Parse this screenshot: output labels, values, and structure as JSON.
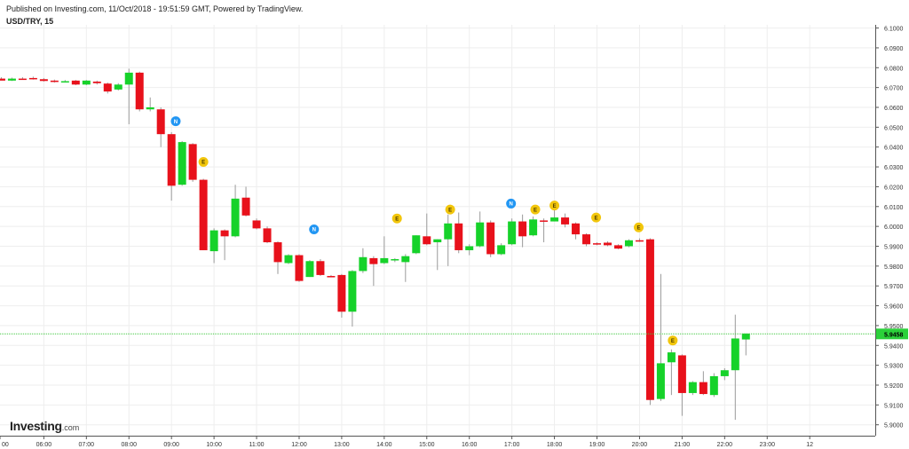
{
  "published_line": "Published on Investing.com, 11/Oct/2018 - 19:51:59 GMT, Powered by TradingView.",
  "symbol": "USD/TRY, 15",
  "logo": {
    "main": "Investing",
    "suffix": ".com"
  },
  "colors": {
    "up": "#16d22a",
    "down": "#e8111b",
    "wick": "#9a9a9a",
    "grid": "#eeeeee",
    "price_line": "#3ec83e",
    "price_tag_bg": "#2bd13a",
    "news_blue": "#2196f3",
    "event_yellow": "#f2c60c"
  },
  "chart_data": {
    "type": "candlestick",
    "y_ticks": [
      "5.9000",
      "5.9100",
      "5.9200",
      "5.9300",
      "5.9400",
      "5.9500",
      "5.9600",
      "5.9700",
      "5.9800",
      "5.9900",
      "6.0000",
      "6.0100",
      "6.0200",
      "6.0300",
      "6.0400",
      "6.0500",
      "6.0600",
      "6.0700",
      "6.0800",
      "6.0900",
      "6.1000"
    ],
    "ylim": [
      5.8945,
      6.1016
    ],
    "x_ticks": [
      {
        "t": 4.97,
        "label": "00"
      },
      {
        "t": 6.0,
        "label": "06:00"
      },
      {
        "t": 7.0,
        "label": "07:00"
      },
      {
        "t": 8.0,
        "label": "08:00"
      },
      {
        "t": 9.0,
        "label": "09:00"
      },
      {
        "t": 10.0,
        "label": "10:00"
      },
      {
        "t": 11.0,
        "label": "11:00"
      },
      {
        "t": 12.0,
        "label": "12:00"
      },
      {
        "t": 13.0,
        "label": "13:00"
      },
      {
        "t": 14.0,
        "label": "14:00"
      },
      {
        "t": 15.0,
        "label": "15:00"
      },
      {
        "t": 16.0,
        "label": "16:00"
      },
      {
        "t": 17.0,
        "label": "17:00"
      },
      {
        "t": 18.0,
        "label": "18:00"
      },
      {
        "t": 19.0,
        "label": "19:00"
      },
      {
        "t": 20.0,
        "label": "20:00"
      },
      {
        "t": 21.0,
        "label": "21:00"
      },
      {
        "t": 22.0,
        "label": "22:00"
      },
      {
        "t": 23.0,
        "label": "23:00"
      },
      {
        "t": 24.0,
        "label": "12"
      }
    ],
    "xlim": [
      4.97,
      25.54
    ],
    "last_price": "5.9458",
    "last_value": 5.9458,
    "candles": [
      {
        "t": 5.0,
        "o": 6.0745,
        "h": 6.0752,
        "l": 6.0738,
        "c": 6.0735
      },
      {
        "t": 5.25,
        "o": 6.0735,
        "h": 6.075,
        "l": 6.0733,
        "c": 6.0745
      },
      {
        "t": 5.5,
        "o": 6.0745,
        "h": 6.0752,
        "l": 6.074,
        "c": 6.0742
      },
      {
        "t": 5.75,
        "o": 6.0748,
        "h": 6.0755,
        "l": 6.074,
        "c": 6.0745
      },
      {
        "t": 6.0,
        "o": 6.0742,
        "h": 6.0748,
        "l": 6.073,
        "c": 6.0733
      },
      {
        "t": 6.25,
        "o": 6.0735,
        "h": 6.074,
        "l": 6.0725,
        "c": 6.0728
      },
      {
        "t": 6.5,
        "o": 6.073,
        "h": 6.0738,
        "l": 6.0728,
        "c": 6.0732
      },
      {
        "t": 6.75,
        "o": 6.0735,
        "h": 6.0738,
        "l": 6.0712,
        "c": 6.0715
      },
      {
        "t": 7.0,
        "o": 6.0715,
        "h": 6.0738,
        "l": 6.0712,
        "c": 6.0735
      },
      {
        "t": 7.25,
        "o": 6.073,
        "h": 6.0735,
        "l": 6.0715,
        "c": 6.0722
      },
      {
        "t": 7.5,
        "o": 6.072,
        "h": 6.0725,
        "l": 6.067,
        "c": 6.068
      },
      {
        "t": 7.75,
        "o": 6.069,
        "h": 6.0722,
        "l": 6.0685,
        "c": 6.0715
      },
      {
        "t": 8.0,
        "o": 6.0715,
        "h": 6.0795,
        "l": 6.0515,
        "c": 6.0775
      },
      {
        "t": 8.25,
        "o": 6.0775,
        "h": 6.078,
        "l": 6.058,
        "c": 6.059
      },
      {
        "t": 8.5,
        "o": 6.059,
        "h": 6.065,
        "l": 6.058,
        "c": 6.06
      },
      {
        "t": 8.75,
        "o": 6.059,
        "h": 6.06,
        "l": 6.04,
        "c": 6.0465
      },
      {
        "t": 9.0,
        "o": 6.0465,
        "h": 6.0475,
        "l": 6.013,
        "c": 6.0205
      },
      {
        "t": 9.25,
        "o": 6.021,
        "h": 6.043,
        "l": 6.0205,
        "c": 6.0425
      },
      {
        "t": 9.5,
        "o": 6.0415,
        "h": 6.042,
        "l": 6.0225,
        "c": 6.0235
      },
      {
        "t": 9.75,
        "o": 6.0235,
        "h": 6.024,
        "l": 5.988,
        "c": 5.988
      },
      {
        "t": 10.0,
        "o": 5.9875,
        "h": 5.999,
        "l": 5.9815,
        "c": 5.998
      },
      {
        "t": 10.25,
        "o": 5.998,
        "h": 5.9985,
        "l": 5.983,
        "c": 5.995
      },
      {
        "t": 10.5,
        "o": 5.995,
        "h": 6.021,
        "l": 5.9945,
        "c": 6.014
      },
      {
        "t": 10.75,
        "o": 6.0145,
        "h": 6.02,
        "l": 6.005,
        "c": 6.0055
      },
      {
        "t": 11.0,
        "o": 6.003,
        "h": 6.004,
        "l": 5.9985,
        "c": 5.999
      },
      {
        "t": 11.25,
        "o": 5.999,
        "h": 6.0,
        "l": 5.9915,
        "c": 5.992
      },
      {
        "t": 11.5,
        "o": 5.992,
        "h": 5.9925,
        "l": 5.976,
        "c": 5.982
      },
      {
        "t": 11.75,
        "o": 5.9815,
        "h": 5.986,
        "l": 5.981,
        "c": 5.9855
      },
      {
        "t": 12.0,
        "o": 5.9855,
        "h": 5.986,
        "l": 5.972,
        "c": 5.9725
      },
      {
        "t": 12.25,
        "o": 5.9745,
        "h": 5.983,
        "l": 5.9745,
        "c": 5.9825
      },
      {
        "t": 12.5,
        "o": 5.9825,
        "h": 5.9835,
        "l": 5.975,
        "c": 5.9755
      },
      {
        "t": 12.75,
        "o": 5.975,
        "h": 5.9755,
        "l": 5.9745,
        "c": 5.9748
      },
      {
        "t": 13.0,
        "o": 5.9755,
        "h": 5.976,
        "l": 5.954,
        "c": 5.957
      },
      {
        "t": 13.25,
        "o": 5.957,
        "h": 5.978,
        "l": 5.9495,
        "c": 5.9775
      },
      {
        "t": 13.5,
        "o": 5.9775,
        "h": 5.989,
        "l": 5.9765,
        "c": 5.9845
      },
      {
        "t": 13.75,
        "o": 5.984,
        "h": 5.985,
        "l": 5.97,
        "c": 5.981
      },
      {
        "t": 14.0,
        "o": 5.9815,
        "h": 5.995,
        "l": 5.981,
        "c": 5.984
      },
      {
        "t": 14.25,
        "o": 5.983,
        "h": 5.984,
        "l": 5.982,
        "c": 5.9835
      },
      {
        "t": 14.5,
        "o": 5.982,
        "h": 5.986,
        "l": 5.972,
        "c": 5.985
      },
      {
        "t": 14.75,
        "o": 5.9865,
        "h": 5.9955,
        "l": 5.986,
        "c": 5.9955
      },
      {
        "t": 15.0,
        "o": 5.995,
        "h": 6.0065,
        "l": 5.9905,
        "c": 5.991
      },
      {
        "t": 15.25,
        "o": 5.992,
        "h": 5.9935,
        "l": 5.978,
        "c": 5.9935
      },
      {
        "t": 15.5,
        "o": 5.9935,
        "h": 6.006,
        "l": 5.98,
        "c": 6.0015
      },
      {
        "t": 15.75,
        "o": 6.0015,
        "h": 6.007,
        "l": 5.9865,
        "c": 5.988
      },
      {
        "t": 16.0,
        "o": 5.988,
        "h": 5.991,
        "l": 5.9855,
        "c": 5.99
      },
      {
        "t": 16.25,
        "o": 5.99,
        "h": 6.0075,
        "l": 5.9895,
        "c": 6.002
      },
      {
        "t": 16.5,
        "o": 6.002,
        "h": 6.003,
        "l": 5.9845,
        "c": 5.986
      },
      {
        "t": 16.75,
        "o": 5.986,
        "h": 5.9915,
        "l": 5.9855,
        "c": 5.9905
      },
      {
        "t": 17.0,
        "o": 5.991,
        "h": 6.004,
        "l": 5.9905,
        "c": 6.0025
      },
      {
        "t": 17.25,
        "o": 6.0025,
        "h": 6.006,
        "l": 5.9895,
        "c": 5.995
      },
      {
        "t": 17.5,
        "o": 5.9955,
        "h": 6.005,
        "l": 5.995,
        "c": 6.0035
      },
      {
        "t": 17.75,
        "o": 6.003,
        "h": 6.004,
        "l": 5.992,
        "c": 6.0025
      },
      {
        "t": 18.0,
        "o": 6.0025,
        "h": 6.011,
        "l": 6.0025,
        "c": 6.0045
      },
      {
        "t": 18.25,
        "o": 6.0045,
        "h": 6.0065,
        "l": 5.9995,
        "c": 6.001
      },
      {
        "t": 18.5,
        "o": 6.0015,
        "h": 6.002,
        "l": 5.9935,
        "c": 5.996
      },
      {
        "t": 18.75,
        "o": 5.996,
        "h": 5.9965,
        "l": 5.99,
        "c": 5.991
      },
      {
        "t": 19.0,
        "o": 5.9915,
        "h": 5.992,
        "l": 5.9905,
        "c": 5.9912
      },
      {
        "t": 19.25,
        "o": 5.9918,
        "h": 5.9925,
        "l": 5.99,
        "c": 5.9905
      },
      {
        "t": 19.5,
        "o": 5.9905,
        "h": 5.991,
        "l": 5.9885,
        "c": 5.9888
      },
      {
        "t": 19.75,
        "o": 5.99,
        "h": 5.9935,
        "l": 5.9895,
        "c": 5.993
      },
      {
        "t": 20.0,
        "o": 5.993,
        "h": 5.994,
        "l": 5.9922,
        "c": 5.9925
      },
      {
        "t": 20.25,
        "o": 5.9935,
        "h": 5.994,
        "l": 5.91,
        "c": 5.9125
      },
      {
        "t": 20.5,
        "o": 5.913,
        "h": 5.976,
        "l": 5.912,
        "c": 5.931
      },
      {
        "t": 20.75,
        "o": 5.9315,
        "h": 5.938,
        "l": 5.915,
        "c": 5.9365
      },
      {
        "t": 21.0,
        "o": 5.935,
        "h": 5.9355,
        "l": 5.9045,
        "c": 5.916
      },
      {
        "t": 21.25,
        "o": 5.916,
        "h": 5.922,
        "l": 5.915,
        "c": 5.9215
      },
      {
        "t": 21.5,
        "o": 5.9215,
        "h": 5.927,
        "l": 5.915,
        "c": 5.9155
      },
      {
        "t": 21.75,
        "o": 5.915,
        "h": 5.926,
        "l": 5.914,
        "c": 5.9245
      },
      {
        "t": 22.0,
        "o": 5.9245,
        "h": 5.9285,
        "l": 5.9225,
        "c": 5.9275
      },
      {
        "t": 22.25,
        "o": 5.9275,
        "h": 5.9555,
        "l": 5.9025,
        "c": 5.9435
      },
      {
        "t": 22.5,
        "o": 5.943,
        "h": 5.946,
        "l": 5.935,
        "c": 5.946
      }
    ],
    "markers": [
      {
        "t": 9.1,
        "v": 6.053,
        "type": "N"
      },
      {
        "t": 9.75,
        "v": 6.0325,
        "type": "E"
      },
      {
        "t": 12.35,
        "v": 5.9985,
        "type": "N"
      },
      {
        "t": 14.3,
        "v": 6.004,
        "type": "E"
      },
      {
        "t": 15.55,
        "v": 6.0085,
        "type": "E"
      },
      {
        "t": 16.98,
        "v": 6.0115,
        "type": "N"
      },
      {
        "t": 17.55,
        "v": 6.0085,
        "type": "E"
      },
      {
        "t": 18.0,
        "v": 6.0105,
        "type": "E"
      },
      {
        "t": 18.98,
        "v": 6.0045,
        "type": "E"
      },
      {
        "t": 19.98,
        "v": 5.9995,
        "type": "E"
      },
      {
        "t": 20.78,
        "v": 5.9425,
        "type": "E"
      }
    ]
  }
}
